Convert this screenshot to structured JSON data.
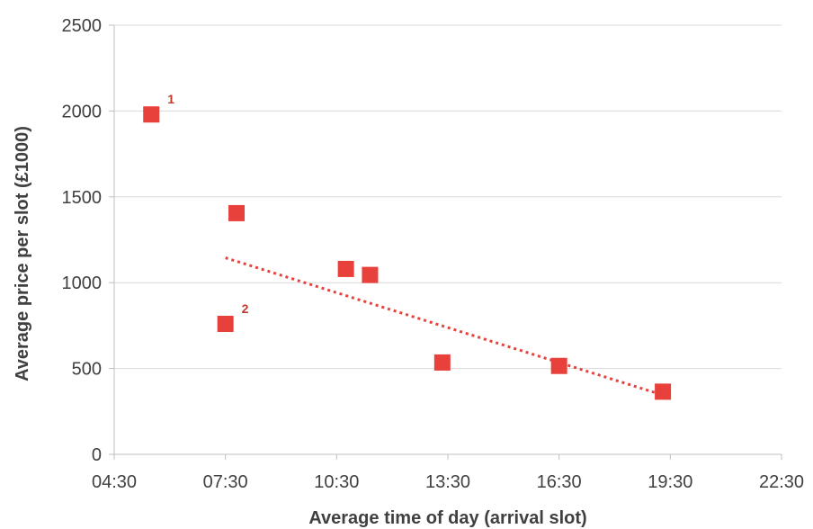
{
  "chart_data": {
    "type": "scatter",
    "title": "",
    "xlabel": "Average time of day (arrival slot)",
    "ylabel": "Average price per slot (£1000)",
    "x_ticks": [
      "04:30",
      "07:30",
      "10:30",
      "13:30",
      "16:30",
      "19:30",
      "22:30"
    ],
    "x_tick_values": [
      4.5,
      7.5,
      10.5,
      13.5,
      16.5,
      19.5,
      22.5
    ],
    "xlim": [
      4.5,
      22.5
    ],
    "ylim": [
      0,
      2500
    ],
    "y_ticks": [
      0,
      500,
      1000,
      1500,
      2000,
      2500
    ],
    "grid": "horizontal",
    "legend": "none",
    "series": [
      {
        "marker": "square",
        "color": "#e8403a",
        "points": [
          {
            "x": 5.5,
            "y": 1980,
            "label": "1"
          },
          {
            "x": 7.8,
            "y": 1405,
            "label": ""
          },
          {
            "x": 7.5,
            "y": 760,
            "label": "2"
          },
          {
            "x": 10.75,
            "y": 1080,
            "label": ""
          },
          {
            "x": 11.4,
            "y": 1045,
            "label": ""
          },
          {
            "x": 13.35,
            "y": 535,
            "label": ""
          },
          {
            "x": 16.5,
            "y": 515,
            "label": ""
          },
          {
            "x": 19.3,
            "y": 365,
            "label": ""
          }
        ]
      }
    ],
    "trendline": {
      "style": "dotted",
      "color": "#e8403a",
      "points": [
        [
          7.5,
          1145
        ],
        [
          19.3,
          345
        ]
      ]
    },
    "gridline_color": "#d9d9d9",
    "axis_color": "#bfbfbf"
  }
}
